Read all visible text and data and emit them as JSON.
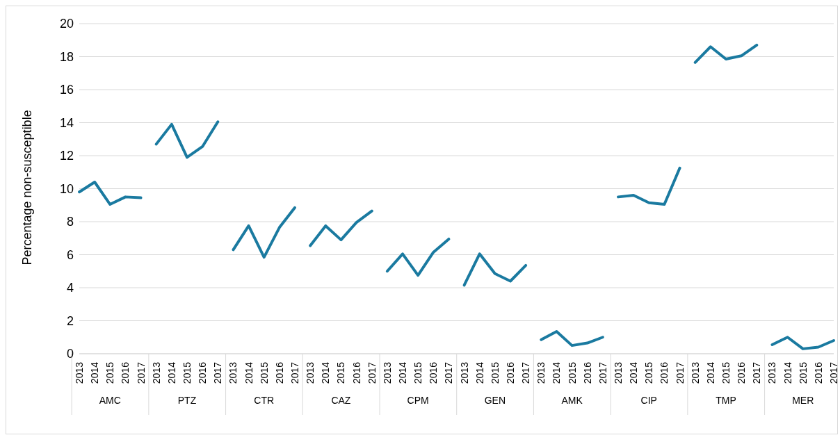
{
  "chart_data": {
    "type": "line",
    "ylabel": "Percentage non-susceptible",
    "categories": [
      "2013",
      "2014",
      "2015",
      "2016",
      "2017",
      "2013",
      "2014",
      "2015",
      "2016",
      "2017",
      "2013",
      "2014",
      "2015",
      "2016",
      "2017",
      "2013",
      "2014",
      "2015",
      "2016",
      "2017",
      "2013",
      "2014",
      "2015",
      "2016",
      "2017",
      "2013",
      "2014",
      "2015",
      "2016",
      "2017",
      "2013",
      "2014",
      "2015",
      "2016",
      "2017",
      "2013",
      "2014",
      "2015",
      "2016",
      "2017",
      "2013",
      "2014",
      "2015",
      "2016",
      "2017",
      "2013",
      "2014",
      "2015",
      "2016",
      "2017"
    ],
    "annotations": [
      "AMC",
      "PTZ",
      "CTR",
      "CAZ",
      "CPM",
      "GEN",
      "AMK",
      "CIP",
      "TMP",
      "MER"
    ],
    "series": [
      {
        "color": "#1a7aa0",
        "values": [
          9.8,
          10.4,
          9.05,
          9.5,
          9.45,
          null,
          null,
          null,
          null,
          null,
          null,
          null,
          null,
          null,
          null,
          null,
          null,
          null,
          null,
          null,
          null,
          null,
          null,
          null,
          null,
          null,
          null,
          null,
          null,
          null,
          null,
          null,
          null,
          null,
          null,
          null,
          null,
          null,
          null,
          null,
          null,
          null,
          null,
          null,
          null,
          null,
          null,
          null,
          null,
          null
        ]
      },
      {
        "color": "#1a7aa0",
        "values": [
          null,
          null,
          null,
          null,
          null,
          12.7,
          13.9,
          11.9,
          12.55,
          14.05,
          null,
          null,
          null,
          null,
          null,
          null,
          null,
          null,
          null,
          null,
          null,
          null,
          null,
          null,
          null,
          null,
          null,
          null,
          null,
          null,
          null,
          null,
          null,
          null,
          null,
          null,
          null,
          null,
          null,
          null,
          null,
          null,
          null,
          null,
          null,
          null,
          null,
          null,
          null,
          null
        ]
      },
      {
        "color": "#1a7aa0",
        "values": [
          null,
          null,
          null,
          null,
          null,
          null,
          null,
          null,
          null,
          null,
          6.3,
          7.75,
          5.85,
          7.65,
          8.85,
          null,
          null,
          null,
          null,
          null,
          null,
          null,
          null,
          null,
          null,
          null,
          null,
          null,
          null,
          null,
          null,
          null,
          null,
          null,
          null,
          null,
          null,
          null,
          null,
          null,
          null,
          null,
          null,
          null,
          null,
          null,
          null,
          null,
          null,
          null
        ]
      },
      {
        "color": "#1a7aa0",
        "values": [
          null,
          null,
          null,
          null,
          null,
          null,
          null,
          null,
          null,
          null,
          null,
          null,
          null,
          null,
          null,
          6.55,
          7.75,
          6.9,
          7.95,
          8.65,
          null,
          null,
          null,
          null,
          null,
          null,
          null,
          null,
          null,
          null,
          null,
          null,
          null,
          null,
          null,
          null,
          null,
          null,
          null,
          null,
          null,
          null,
          null,
          null,
          null,
          null,
          null,
          null,
          null,
          null
        ]
      },
      {
        "color": "#1a7aa0",
        "values": [
          null,
          null,
          null,
          null,
          null,
          null,
          null,
          null,
          null,
          null,
          null,
          null,
          null,
          null,
          null,
          null,
          null,
          null,
          null,
          null,
          5.0,
          6.05,
          4.75,
          6.15,
          6.95,
          null,
          null,
          null,
          null,
          null,
          null,
          null,
          null,
          null,
          null,
          null,
          null,
          null,
          null,
          null,
          null,
          null,
          null,
          null,
          null,
          null,
          null,
          null,
          null,
          null
        ]
      },
      {
        "color": "#1a7aa0",
        "values": [
          null,
          null,
          null,
          null,
          null,
          null,
          null,
          null,
          null,
          null,
          null,
          null,
          null,
          null,
          null,
          null,
          null,
          null,
          null,
          null,
          null,
          null,
          null,
          null,
          null,
          4.15,
          6.05,
          4.85,
          4.4,
          5.35,
          null,
          null,
          null,
          null,
          null,
          null,
          null,
          null,
          null,
          null,
          null,
          null,
          null,
          null,
          null,
          null,
          null,
          null,
          null,
          null
        ]
      },
      {
        "color": "#1a7aa0",
        "values": [
          null,
          null,
          null,
          null,
          null,
          null,
          null,
          null,
          null,
          null,
          null,
          null,
          null,
          null,
          null,
          null,
          null,
          null,
          null,
          null,
          null,
          null,
          null,
          null,
          null,
          null,
          null,
          null,
          null,
          null,
          0.85,
          1.35,
          0.5,
          0.65,
          1.0,
          null,
          null,
          null,
          null,
          null,
          null,
          null,
          null,
          null,
          null,
          null,
          null,
          null,
          null,
          null
        ]
      },
      {
        "color": "#1a7aa0",
        "values": [
          null,
          null,
          null,
          null,
          null,
          null,
          null,
          null,
          null,
          null,
          null,
          null,
          null,
          null,
          null,
          null,
          null,
          null,
          null,
          null,
          null,
          null,
          null,
          null,
          null,
          null,
          null,
          null,
          null,
          null,
          null,
          null,
          null,
          null,
          null,
          9.5,
          9.6,
          9.15,
          9.05,
          11.25,
          null,
          null,
          null,
          null,
          null,
          null,
          null,
          null,
          null,
          null
        ]
      },
      {
        "color": "#1a7aa0",
        "values": [
          null,
          null,
          null,
          null,
          null,
          null,
          null,
          null,
          null,
          null,
          null,
          null,
          null,
          null,
          null,
          null,
          null,
          null,
          null,
          null,
          null,
          null,
          null,
          null,
          null,
          null,
          null,
          null,
          null,
          null,
          null,
          null,
          null,
          null,
          null,
          null,
          null,
          null,
          null,
          null,
          17.65,
          18.6,
          17.85,
          18.05,
          18.7,
          null,
          null,
          null,
          null,
          null
        ]
      },
      {
        "color": "#1a7aa0",
        "values": [
          null,
          null,
          null,
          null,
          null,
          null,
          null,
          null,
          null,
          null,
          null,
          null,
          null,
          null,
          null,
          null,
          null,
          null,
          null,
          null,
          null,
          null,
          null,
          null,
          null,
          null,
          null,
          null,
          null,
          null,
          null,
          null,
          null,
          null,
          null,
          null,
          null,
          null,
          null,
          null,
          null,
          null,
          null,
          null,
          null,
          0.55,
          1.0,
          0.3,
          0.4,
          0.8
        ]
      }
    ],
    "ylim": [
      0,
      20
    ],
    "yticks": [
      0,
      2,
      4,
      6,
      8,
      10,
      12,
      14,
      16,
      18,
      20
    ],
    "grid": "y"
  }
}
